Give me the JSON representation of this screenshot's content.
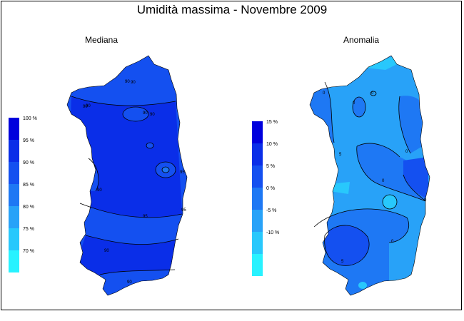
{
  "title": "Umidità massima - Novembre 2009",
  "panels": [
    {
      "id": "median",
      "subtitle": "Mediana",
      "legend": {
        "labels": [
          "100 %",
          "95 %",
          "90 %",
          "85 %",
          "80 %",
          "75 %",
          "70 %"
        ],
        "colors": [
          "#0000dd",
          "#0a2ee8",
          "#1450f0",
          "#1e78f4",
          "#28a2f8",
          "#28c8fc",
          "#28f2ff"
        ]
      },
      "contour_labels": [
        "90",
        "90",
        "90",
        "90",
        "90",
        "95",
        "95",
        "95",
        "90",
        "90",
        "90",
        "90"
      ]
    },
    {
      "id": "anomaly",
      "subtitle": "Anomalia",
      "legend": {
        "labels": [
          "15 %",
          "10 %",
          "5 %",
          "0 %",
          "-5 %",
          "-10 %"
        ],
        "colors": [
          "#0000dd",
          "#0a2ee8",
          "#1450f0",
          "#1e78f4",
          "#28a2f8",
          "#28c8fc",
          "#28f2ff"
        ]
      },
      "contour_labels": [
        "0",
        "0",
        "0",
        "0",
        "0",
        "0",
        "5",
        "0",
        "5"
      ]
    }
  ]
}
